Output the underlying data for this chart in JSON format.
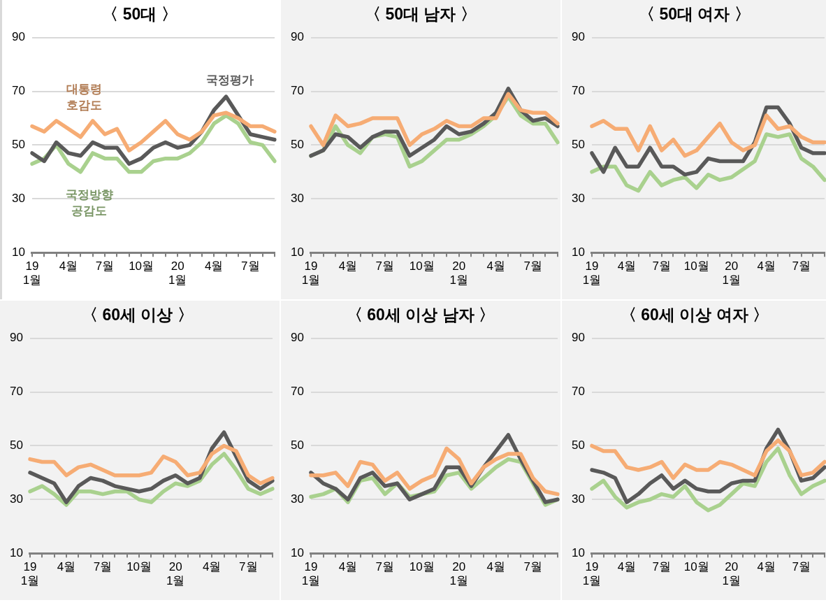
{
  "chart_data": [
    {
      "type": "line",
      "title": "〈 50대 〉",
      "categories": [
        "19\n1월",
        null,
        null,
        "4월",
        null,
        null,
        "7월",
        null,
        null,
        "10월",
        null,
        null,
        "20\n1월",
        null,
        null,
        "4월",
        null,
        null,
        "7월",
        null,
        null
      ],
      "ylim": [
        10,
        90
      ],
      "yticks": [
        10,
        30,
        50,
        70,
        90
      ],
      "grid": "y",
      "legend": false,
      "marker": "none",
      "series": [
        {
          "name": "대통령\n호감도",
          "color": "#f6ac74",
          "values": [
            57,
            55,
            59,
            56,
            53,
            59,
            54,
            56,
            48,
            51,
            55,
            59,
            54,
            52,
            55,
            61,
            62,
            60,
            57,
            57,
            55
          ]
        },
        {
          "name": "국정평가",
          "color": "#595959",
          "values": [
            47,
            44,
            51,
            47,
            46,
            51,
            49,
            49,
            43,
            45,
            49,
            51,
            49,
            50,
            55,
            63,
            68,
            61,
            54,
            53,
            52
          ]
        },
        {
          "name": "국정방향\n공감도",
          "color": "#a9d18e",
          "values": [
            43,
            45,
            50,
            43,
            40,
            47,
            45,
            45,
            40,
            40,
            44,
            45,
            45,
            47,
            51,
            58,
            61,
            58,
            51,
            50,
            44
          ]
        }
      ]
    },
    {
      "type": "line",
      "title": "〈 50대 남자 〉",
      "categories": [
        "19\n1월",
        null,
        null,
        "4월",
        null,
        null,
        "7월",
        null,
        null,
        "10월",
        null,
        null,
        "20\n1월",
        null,
        null,
        "4월",
        null,
        null,
        "7월",
        null,
        null
      ],
      "ylim": [
        10,
        90
      ],
      "yticks": [
        10,
        30,
        50,
        70,
        90
      ],
      "grid": "y",
      "legend": false,
      "marker": "none",
      "series": [
        {
          "color": "#f6ac74",
          "values": [
            57,
            50,
            61,
            57,
            58,
            60,
            60,
            60,
            50,
            54,
            56,
            59,
            57,
            57,
            60,
            60,
            69,
            63,
            62,
            62,
            58
          ]
        },
        {
          "color": "#595959",
          "values": [
            46,
            48,
            54,
            53,
            49,
            53,
            55,
            55,
            46,
            49,
            52,
            57,
            54,
            55,
            58,
            62,
            71,
            63,
            59,
            60,
            57
          ]
        },
        {
          "color": "#a9d18e",
          "values": [
            46,
            48,
            57,
            50,
            47,
            53,
            54,
            53,
            42,
            44,
            48,
            52,
            52,
            54,
            57,
            61,
            68,
            61,
            58,
            58,
            51
          ]
        }
      ]
    },
    {
      "type": "line",
      "title": "〈 50대 여자 〉",
      "categories": [
        "19\n1월",
        null,
        null,
        "4월",
        null,
        null,
        "7월",
        null,
        null,
        "10월",
        null,
        null,
        "20\n1월",
        null,
        null,
        "4월",
        null,
        null,
        "7월",
        null,
        null
      ],
      "ylim": [
        10,
        90
      ],
      "yticks": [
        10,
        30,
        50,
        70,
        90
      ],
      "grid": "y",
      "legend": false,
      "marker": "none",
      "series": [
        {
          "color": "#f6ac74",
          "values": [
            57,
            59,
            56,
            56,
            48,
            57,
            48,
            52,
            46,
            48,
            53,
            58,
            51,
            48,
            50,
            61,
            56,
            57,
            53,
            51,
            51
          ]
        },
        {
          "color": "#595959",
          "values": [
            47,
            40,
            49,
            42,
            42,
            49,
            42,
            42,
            39,
            40,
            45,
            44,
            44,
            44,
            51,
            64,
            64,
            58,
            49,
            47,
            47
          ]
        },
        {
          "color": "#a9d18e",
          "values": [
            40,
            42,
            42,
            35,
            33,
            40,
            35,
            37,
            38,
            34,
            39,
            37,
            38,
            41,
            44,
            54,
            53,
            54,
            45,
            42,
            37
          ]
        }
      ]
    },
    {
      "type": "line",
      "title": "〈 60세 이상 〉",
      "categories": [
        "19\n1월",
        null,
        null,
        "4월",
        null,
        null,
        "7월",
        null,
        null,
        "10월",
        null,
        null,
        "20\n1월",
        null,
        null,
        "4월",
        null,
        null,
        "7월",
        null,
        null
      ],
      "ylim": [
        10,
        90
      ],
      "yticks": [
        10,
        30,
        50,
        70,
        90
      ],
      "grid": "y",
      "legend": false,
      "marker": "none",
      "series": [
        {
          "color": "#f6ac74",
          "values": [
            45,
            44,
            44,
            39,
            42,
            43,
            41,
            39,
            39,
            39,
            40,
            46,
            44,
            39,
            40,
            47,
            50,
            48,
            39,
            36,
            38
          ]
        },
        {
          "color": "#595959",
          "values": [
            40,
            38,
            36,
            29,
            35,
            38,
            37,
            35,
            34,
            33,
            34,
            37,
            39,
            36,
            38,
            49,
            55,
            46,
            37,
            34,
            37
          ]
        },
        {
          "color": "#a9d18e",
          "values": [
            33,
            35,
            32,
            28,
            33,
            33,
            32,
            33,
            33,
            30,
            29,
            33,
            36,
            35,
            37,
            43,
            47,
            41,
            34,
            32,
            34
          ]
        }
      ]
    },
    {
      "type": "line",
      "title": "〈 60세 이상 남자 〉",
      "categories": [
        "19\n1월",
        null,
        null,
        "4월",
        null,
        null,
        "7월",
        null,
        null,
        "10월",
        null,
        null,
        "20\n1월",
        null,
        null,
        "4월",
        null,
        null,
        "7월",
        null,
        null
      ],
      "ylim": [
        10,
        90
      ],
      "yticks": [
        10,
        30,
        50,
        70,
        90
      ],
      "grid": "y",
      "legend": false,
      "marker": "none",
      "series": [
        {
          "color": "#f6ac74",
          "values": [
            39,
            39,
            40,
            35,
            44,
            43,
            37,
            40,
            34,
            37,
            39,
            49,
            45,
            36,
            42,
            45,
            47,
            47,
            38,
            33,
            32
          ]
        },
        {
          "color": "#595959",
          "values": [
            40,
            36,
            34,
            30,
            38,
            40,
            35,
            36,
            30,
            32,
            34,
            42,
            42,
            35,
            42,
            48,
            54,
            45,
            37,
            29,
            30
          ]
        },
        {
          "color": "#a9d18e",
          "values": [
            31,
            32,
            34,
            29,
            37,
            38,
            32,
            36,
            31,
            32,
            33,
            39,
            40,
            34,
            38,
            42,
            45,
            44,
            36,
            28,
            30
          ]
        }
      ]
    },
    {
      "type": "line",
      "title": "〈 60세 이상 여자 〉",
      "categories": [
        "19\n1월",
        null,
        null,
        "4월",
        null,
        null,
        "7월",
        null,
        null,
        "10월",
        null,
        null,
        "20\n1월",
        null,
        null,
        "4월",
        null,
        null,
        "7월",
        null,
        null
      ],
      "ylim": [
        10,
        90
      ],
      "yticks": [
        10,
        30,
        50,
        70,
        90
      ],
      "grid": "y",
      "legend": false,
      "marker": "none",
      "series": [
        {
          "color": "#f6ac74",
          "values": [
            50,
            48,
            48,
            42,
            41,
            42,
            44,
            38,
            43,
            41,
            41,
            44,
            43,
            41,
            39,
            48,
            52,
            48,
            39,
            40,
            44
          ]
        },
        {
          "color": "#595959",
          "values": [
            41,
            40,
            38,
            29,
            32,
            36,
            39,
            34,
            37,
            34,
            33,
            33,
            36,
            37,
            37,
            49,
            56,
            48,
            37,
            38,
            42
          ]
        },
        {
          "color": "#a9d18e",
          "values": [
            34,
            37,
            31,
            27,
            29,
            30,
            32,
            31,
            35,
            29,
            26,
            28,
            32,
            36,
            35,
            44,
            49,
            39,
            32,
            35,
            37
          ]
        }
      ]
    }
  ]
}
